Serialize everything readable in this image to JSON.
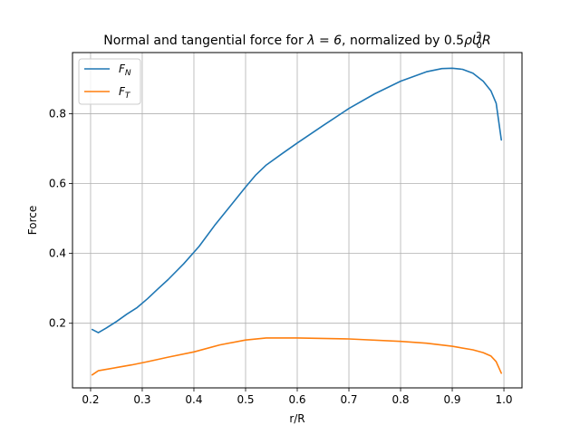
{
  "chart_data": {
    "type": "line",
    "title_prefix": "Normal and tangential force for ",
    "title_lambda": "λ = 6",
    "title_mid": ", normalized by 0.5",
    "title_rho": "ρ",
    "title_U": "U",
    "title_U_sub": "0",
    "title_U_sup": "2",
    "title_R": "R",
    "xlabel": "r/R",
    "ylabel": "Force",
    "xlim": [
      0.165,
      1.035
    ],
    "ylim": [
      0.015,
      0.975
    ],
    "xticks": [
      0.2,
      0.3,
      0.4,
      0.5,
      0.6,
      0.7,
      0.8,
      0.9,
      1.0
    ],
    "xtick_labels": [
      "0.2",
      "0.3",
      "0.4",
      "0.5",
      "0.6",
      "0.7",
      "0.8",
      "0.9",
      "1.0"
    ],
    "yticks": [
      0.2,
      0.4,
      0.6,
      0.8
    ],
    "ytick_labels": [
      "0.2",
      "0.4",
      "0.6",
      "0.8"
    ],
    "grid": true,
    "legend_position": "top-left",
    "series": [
      {
        "name": "F",
        "name_sub": "N",
        "color": "#1f77b4",
        "x": [
          0.203,
          0.215,
          0.23,
          0.25,
          0.27,
          0.29,
          0.31,
          0.33,
          0.35,
          0.38,
          0.41,
          0.44,
          0.47,
          0.5,
          0.52,
          0.54,
          0.57,
          0.6,
          0.65,
          0.7,
          0.75,
          0.8,
          0.85,
          0.88,
          0.9,
          0.92,
          0.94,
          0.96,
          0.975,
          0.985,
          0.995
        ],
        "y": [
          0.182,
          0.173,
          0.186,
          0.205,
          0.226,
          0.245,
          0.27,
          0.298,
          0.325,
          0.37,
          0.42,
          0.48,
          0.535,
          0.59,
          0.625,
          0.653,
          0.685,
          0.716,
          0.766,
          0.815,
          0.857,
          0.893,
          0.92,
          0.929,
          0.93,
          0.927,
          0.916,
          0.893,
          0.865,
          0.83,
          0.725
        ]
      },
      {
        "name": "F",
        "name_sub": "T",
        "color": "#ff7f0e",
        "x": [
          0.203,
          0.215,
          0.25,
          0.28,
          0.31,
          0.35,
          0.4,
          0.45,
          0.5,
          0.54,
          0.6,
          0.7,
          0.8,
          0.85,
          0.9,
          0.94,
          0.96,
          0.975,
          0.985,
          0.995
        ],
        "y": [
          0.052,
          0.064,
          0.073,
          0.081,
          0.09,
          0.103,
          0.118,
          0.138,
          0.152,
          0.158,
          0.158,
          0.155,
          0.148,
          0.143,
          0.134,
          0.124,
          0.116,
          0.106,
          0.09,
          0.057
        ]
      }
    ]
  }
}
